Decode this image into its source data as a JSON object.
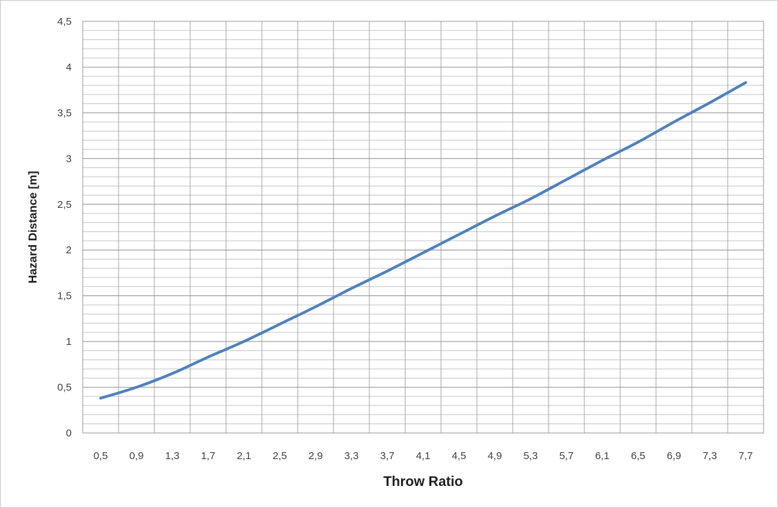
{
  "chart_data": {
    "type": "line",
    "title": "",
    "xlabel": "Throw Ratio",
    "ylabel": "Hazard Distance [m]",
    "ylim": [
      0,
      4.5
    ],
    "grid": true,
    "legend": "none",
    "y_ticks": [
      "0",
      "0,5",
      "1",
      "1,5",
      "2",
      "2,5",
      "3",
      "3,5",
      "4",
      "4,5"
    ],
    "x_tick_labels": [
      "0,5",
      "0,9",
      "1,3",
      "1,7",
      "2,1",
      "2,5",
      "2,9",
      "3,3",
      "3,7",
      "4,1",
      "4,5",
      "4,9",
      "5,3",
      "5,7",
      "6,1",
      "6,5",
      "6,9",
      "7,3",
      "7,7"
    ],
    "series": [
      {
        "color": "#4f81bd",
        "x": [
          0.5,
          0.9,
          1.3,
          1.7,
          2.1,
          2.5,
          2.9,
          3.3,
          3.7,
          4.1,
          4.5,
          4.9,
          5.3,
          5.7,
          6.1,
          6.5,
          6.9,
          7.3,
          7.7
        ],
        "values": [
          0.38,
          0.5,
          0.65,
          0.83,
          1.0,
          1.19,
          1.38,
          1.58,
          1.77,
          1.97,
          2.17,
          2.37,
          2.56,
          2.77,
          2.98,
          3.18,
          3.4,
          3.61,
          3.83
        ]
      }
    ]
  }
}
